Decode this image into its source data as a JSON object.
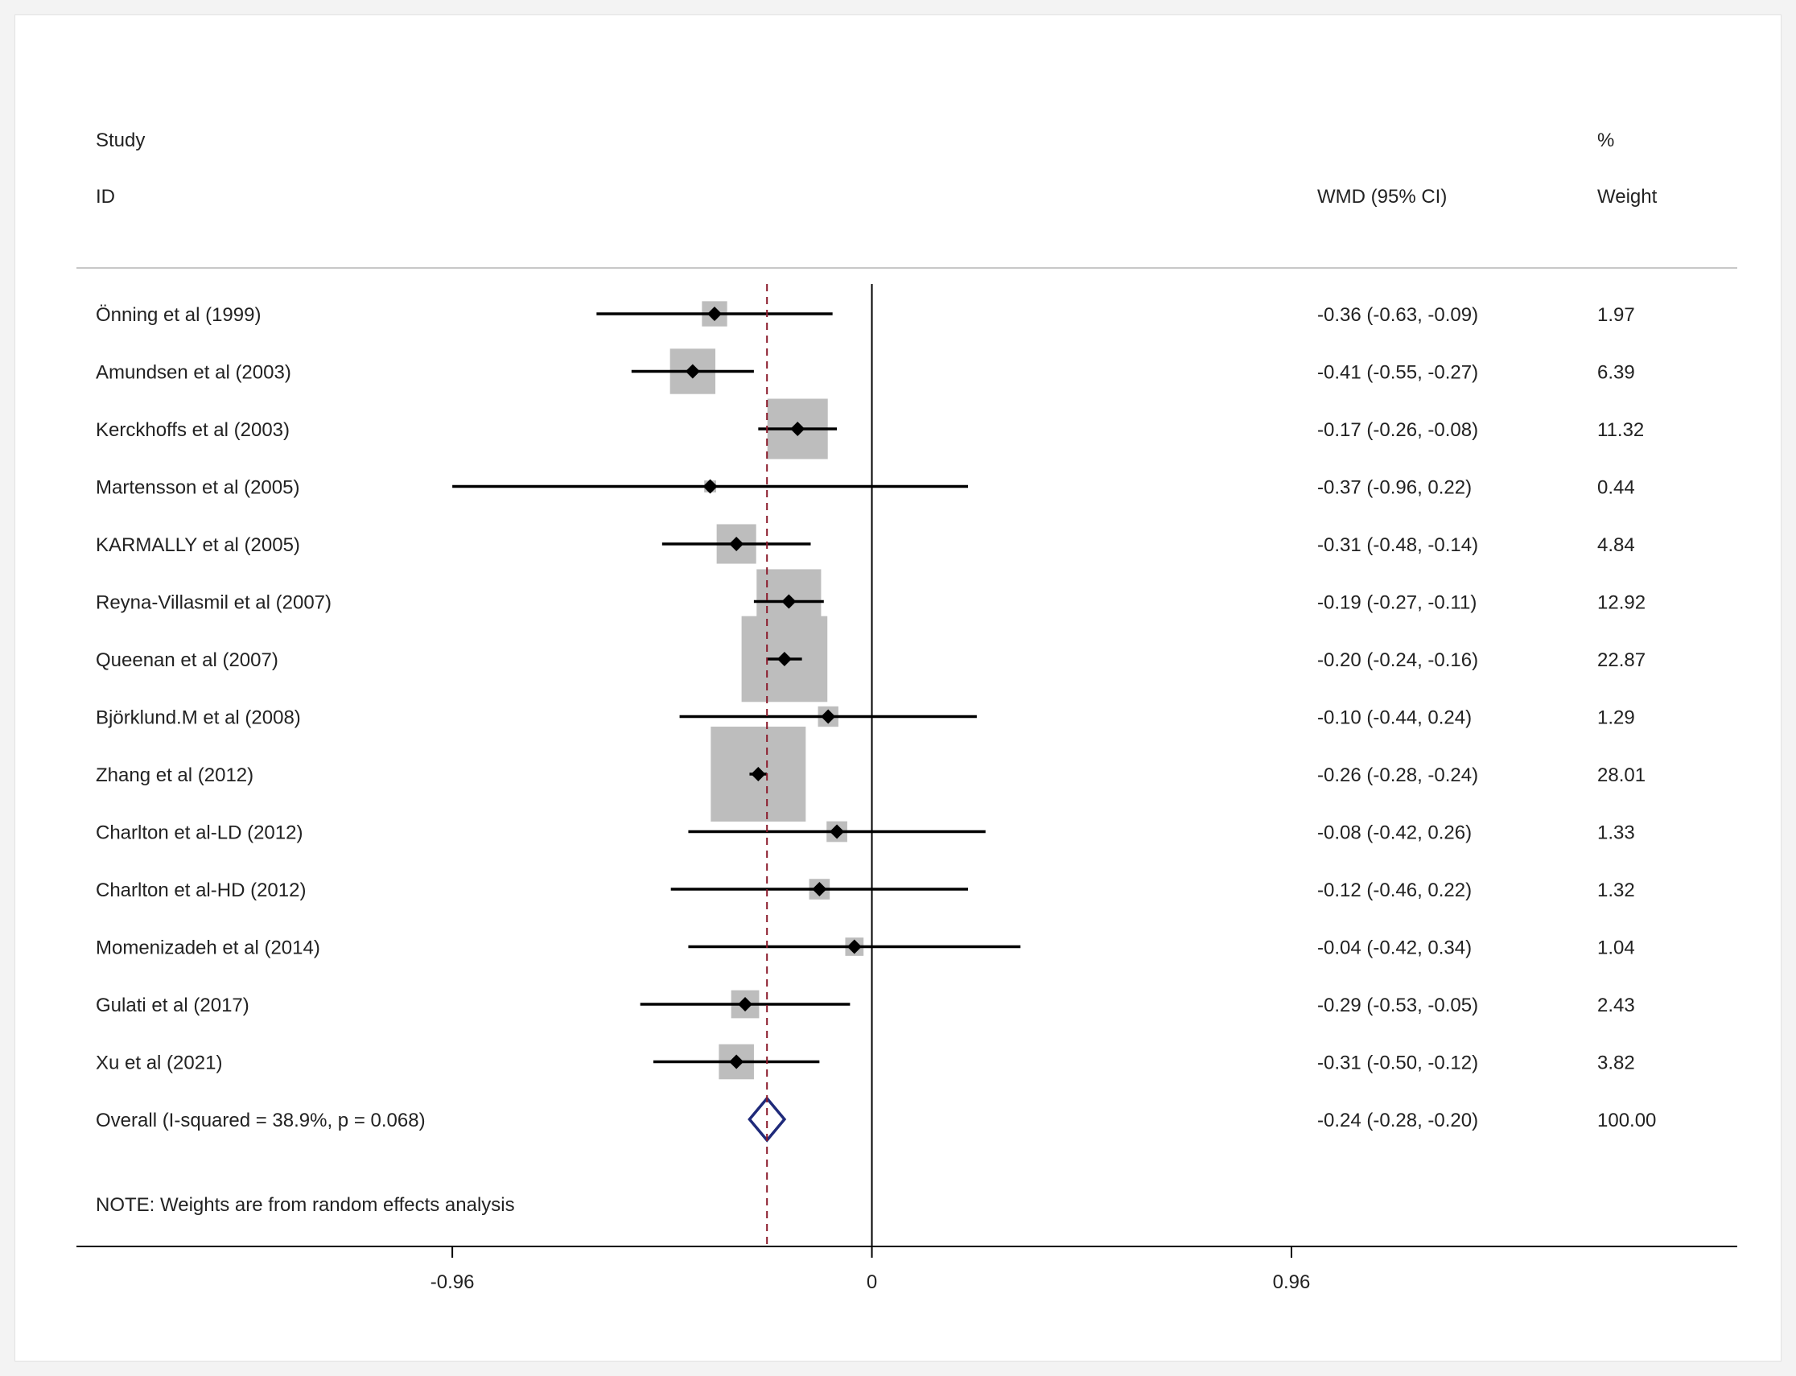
{
  "chart_data": {
    "type": "forest",
    "header": {
      "study_line1": "Study",
      "study_line2": "ID",
      "effect_label": "WMD (95% CI)",
      "weight_line1": "%",
      "weight_line2": "Weight"
    },
    "studies": [
      {
        "id": "Önning et al (1999)",
        "estimate": -0.36,
        "lower": -0.63,
        "upper": -0.09,
        "ci_text": "-0.36 (-0.63, -0.09)",
        "weight": 1.97,
        "weight_text": "1.97"
      },
      {
        "id": "Amundsen et al (2003)",
        "estimate": -0.41,
        "lower": -0.55,
        "upper": -0.27,
        "ci_text": "-0.41 (-0.55, -0.27)",
        "weight": 6.39,
        "weight_text": "6.39"
      },
      {
        "id": "Kerckhoffs et al (2003)",
        "estimate": -0.17,
        "lower": -0.26,
        "upper": -0.08,
        "ci_text": "-0.17 (-0.26, -0.08)",
        "weight": 11.32,
        "weight_text": "11.32"
      },
      {
        "id": "Martensson et al (2005)",
        "estimate": -0.37,
        "lower": -0.96,
        "upper": 0.22,
        "ci_text": "-0.37 (-0.96, 0.22)",
        "weight": 0.44,
        "weight_text": "0.44"
      },
      {
        "id": "KARMALLY et al (2005)",
        "estimate": -0.31,
        "lower": -0.48,
        "upper": -0.14,
        "ci_text": "-0.31 (-0.48, -0.14)",
        "weight": 4.84,
        "weight_text": "4.84"
      },
      {
        "id": "Reyna-Villasmil et al (2007)",
        "estimate": -0.19,
        "lower": -0.27,
        "upper": -0.11,
        "ci_text": "-0.19 (-0.27, -0.11)",
        "weight": 12.92,
        "weight_text": "12.92"
      },
      {
        "id": "Queenan et al (2007)",
        "estimate": -0.2,
        "lower": -0.24,
        "upper": -0.16,
        "ci_text": "-0.20 (-0.24, -0.16)",
        "weight": 22.87,
        "weight_text": "22.87"
      },
      {
        "id": "Björklund.M et al (2008)",
        "estimate": -0.1,
        "lower": -0.44,
        "upper": 0.24,
        "ci_text": "-0.10 (-0.44, 0.24)",
        "weight": 1.29,
        "weight_text": "1.29"
      },
      {
        "id": "Zhang et al (2012)",
        "estimate": -0.26,
        "lower": -0.28,
        "upper": -0.24,
        "ci_text": "-0.26 (-0.28, -0.24)",
        "weight": 28.01,
        "weight_text": "28.01"
      },
      {
        "id": "Charlton et al-LD (2012)",
        "estimate": -0.08,
        "lower": -0.42,
        "upper": 0.26,
        "ci_text": "-0.08 (-0.42, 0.26)",
        "weight": 1.33,
        "weight_text": "1.33"
      },
      {
        "id": "Charlton et al-HD (2012)",
        "estimate": -0.12,
        "lower": -0.46,
        "upper": 0.22,
        "ci_text": "-0.12 (-0.46, 0.22)",
        "weight": 1.32,
        "weight_text": "1.32"
      },
      {
        "id": "Momenizadeh et al (2014)",
        "estimate": -0.04,
        "lower": -0.42,
        "upper": 0.34,
        "ci_text": "-0.04 (-0.42, 0.34)",
        "weight": 1.04,
        "weight_text": "1.04"
      },
      {
        "id": "Gulati et al (2017)",
        "estimate": -0.29,
        "lower": -0.53,
        "upper": -0.05,
        "ci_text": "-0.29 (-0.53, -0.05)",
        "weight": 2.43,
        "weight_text": "2.43"
      },
      {
        "id": "Xu et al (2021)",
        "estimate": -0.31,
        "lower": -0.5,
        "upper": -0.12,
        "ci_text": "-0.31 (-0.50, -0.12)",
        "weight": 3.82,
        "weight_text": "3.82"
      }
    ],
    "overall": {
      "label": "Overall  (I-squared = 38.9%, p = 0.068)",
      "estimate": -0.24,
      "lower": -0.28,
      "upper": -0.2,
      "ci_text": "-0.24 (-0.28, -0.20)",
      "weight_text": "100.00"
    },
    "note": "NOTE: Weights are from random effects analysis",
    "x_axis": {
      "min": -1.82,
      "max": 1.98,
      "ticks": [
        -0.96,
        0,
        0.96
      ],
      "tick_labels": [
        "-0.96",
        "0",
        "0.96"
      ]
    },
    "colors": {
      "box": "#bdbdbd",
      "line": "#000000",
      "diamond": "#1f2a7a",
      "overall_line": "#8b1a2b"
    }
  }
}
